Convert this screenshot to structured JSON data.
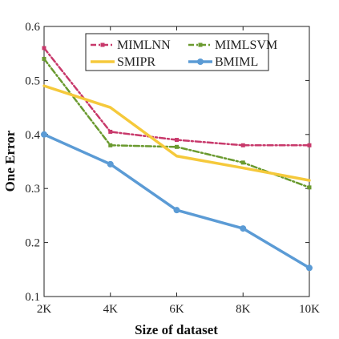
{
  "chart_data": {
    "type": "line",
    "title": "",
    "xlabel": "Size of dataset",
    "ylabel": "One Error",
    "categories": [
      "2K",
      "4K",
      "6K",
      "8K",
      "10K"
    ],
    "ylim": [
      0.1,
      0.6
    ],
    "yticks": [
      "0.1",
      "0.2",
      "0.3",
      "0.4",
      "0.5",
      "0.6"
    ],
    "grid": false,
    "legend_position": "top",
    "series": [
      {
        "name": "MIMLNN",
        "values": [
          0.56,
          0.405,
          0.39,
          0.38,
          0.38
        ],
        "color": "#c8396b",
        "style": "dashdot",
        "marker": "square"
      },
      {
        "name": "MIMLSVM",
        "values": [
          0.54,
          0.38,
          0.377,
          0.348,
          0.302
        ],
        "color": "#6a9a2f",
        "style": "dashdot",
        "marker": "square"
      },
      {
        "name": "SMIPR",
        "values": [
          0.49,
          0.45,
          0.36,
          0.338,
          0.315
        ],
        "color": "#f5c93b",
        "style": "solid",
        "marker": "none"
      },
      {
        "name": "BMIML",
        "values": [
          0.4,
          0.345,
          0.26,
          0.226,
          0.153
        ],
        "color": "#5b9bd5",
        "style": "solid",
        "marker": "circle"
      }
    ]
  }
}
